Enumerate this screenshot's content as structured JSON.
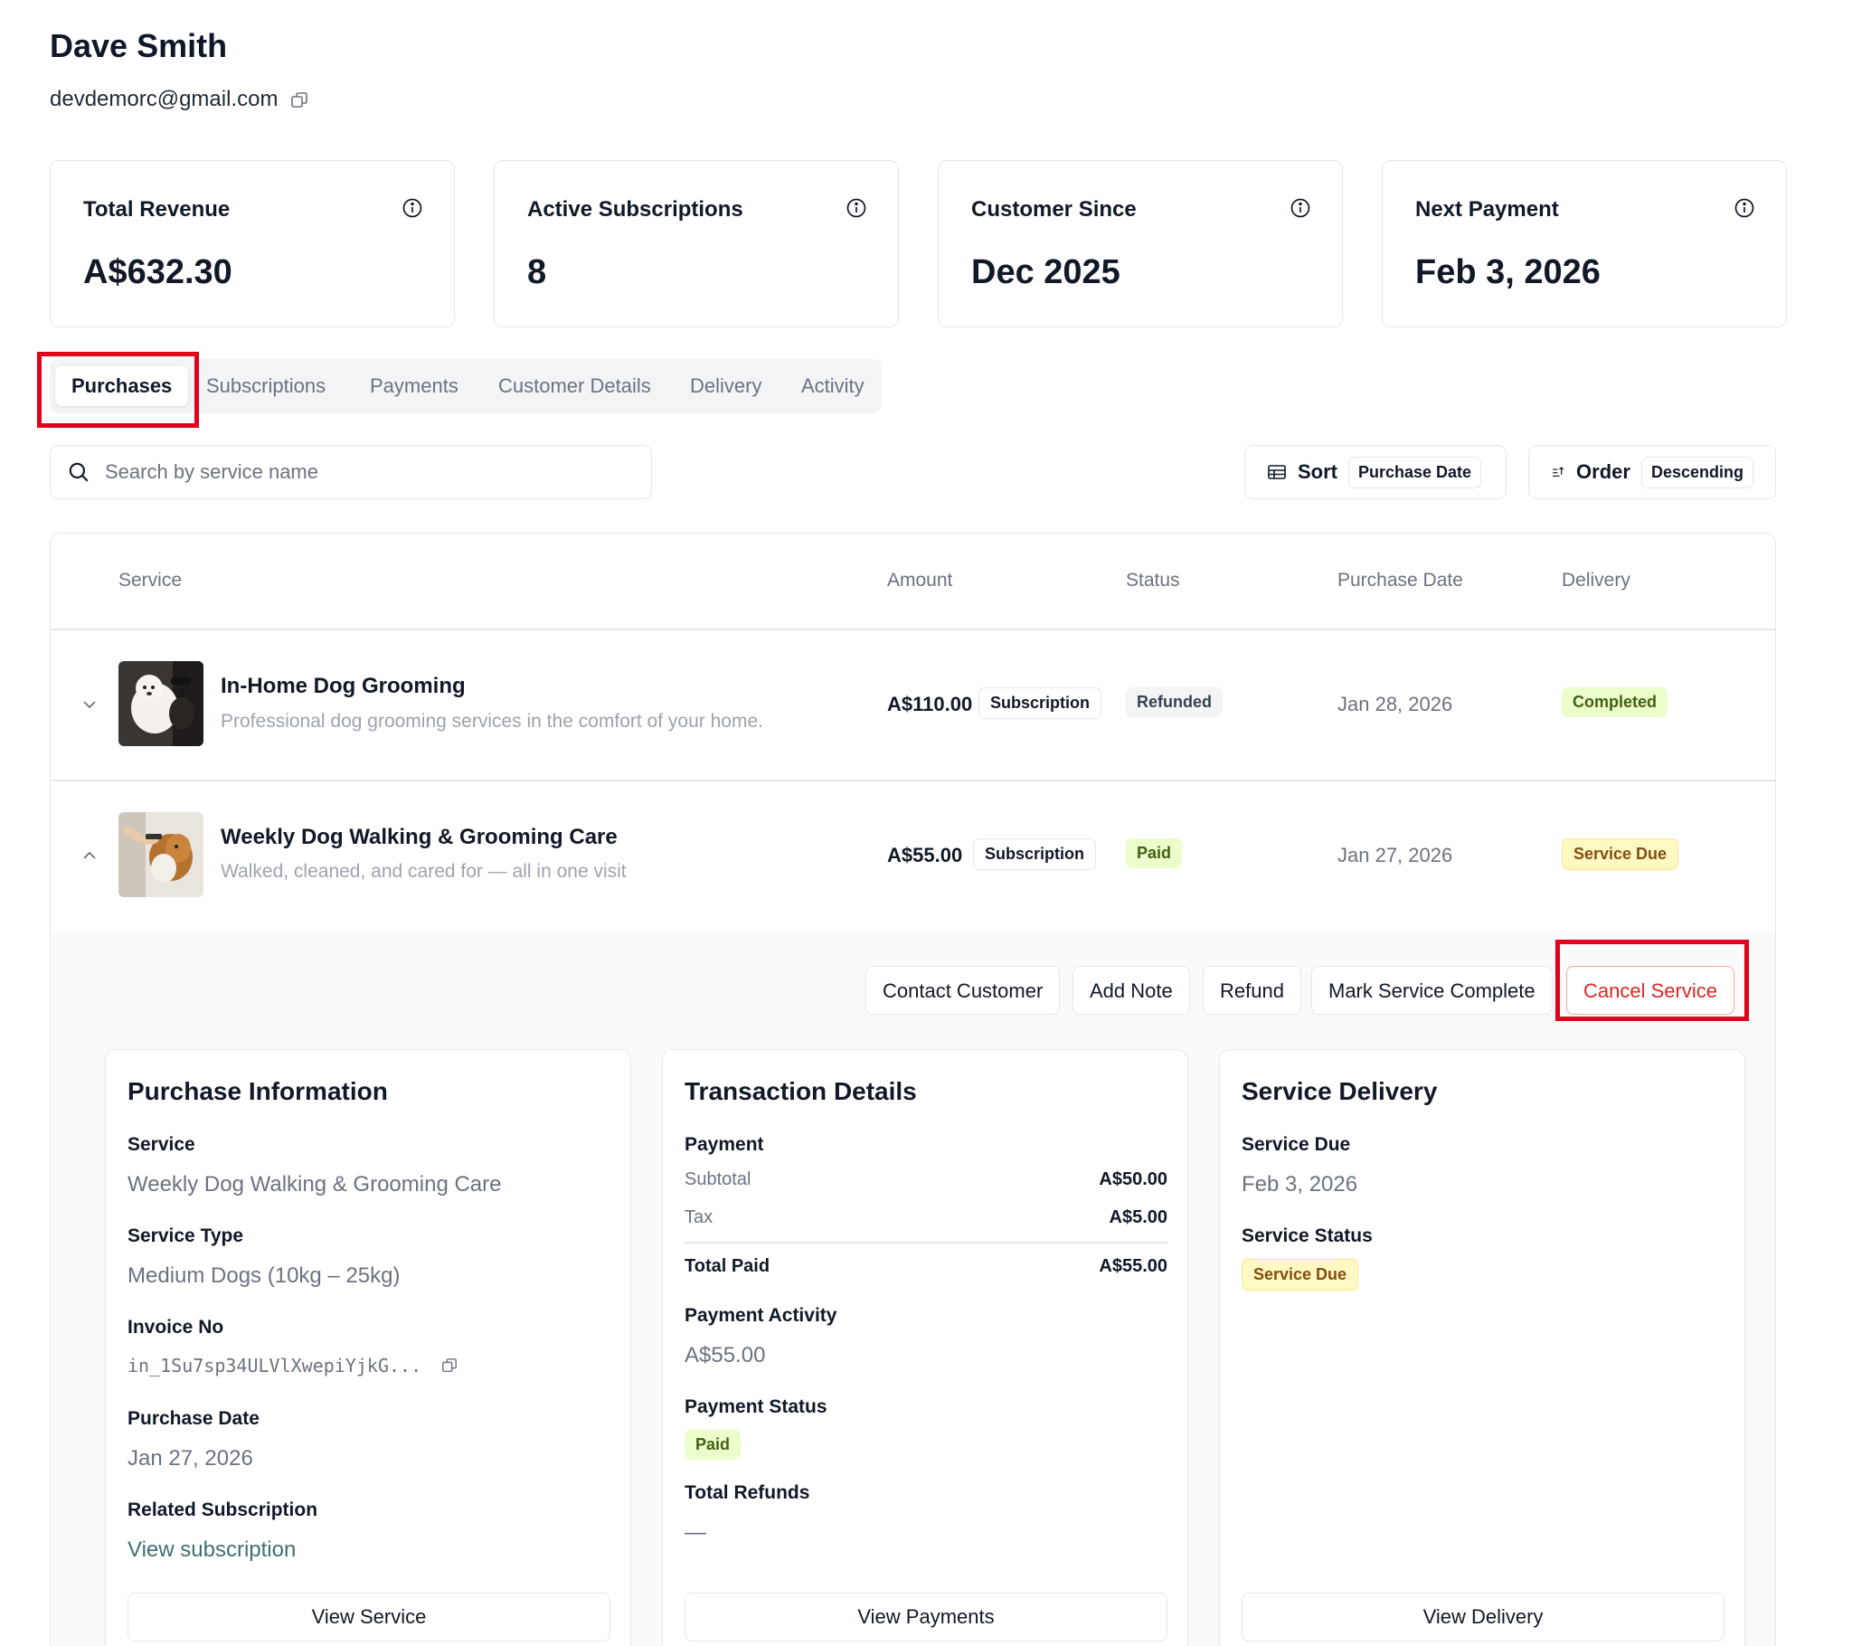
{
  "customer": {
    "name": "Dave Smith",
    "email": "devdemorc@gmail.com"
  },
  "stats": [
    {
      "label": "Total Revenue",
      "value": "A$632.30"
    },
    {
      "label": "Active Subscriptions",
      "value": "8"
    },
    {
      "label": "Customer Since",
      "value": "Dec 2025"
    },
    {
      "label": "Next Payment",
      "value": "Feb 3, 2026"
    }
  ],
  "tabs": [
    "Purchases",
    "Subscriptions",
    "Payments",
    "Customer Details",
    "Delivery",
    "Activity"
  ],
  "active_tab": "Purchases",
  "search": {
    "placeholder": "Search by service name",
    "value": ""
  },
  "sort": {
    "label": "Sort",
    "value": "Purchase Date"
  },
  "order": {
    "label": "Order",
    "value": "Descending"
  },
  "table": {
    "columns": [
      "Service",
      "Amount",
      "Status",
      "Purchase Date",
      "Delivery"
    ],
    "rows": [
      {
        "title": "In-Home Dog Grooming",
        "subtitle": "Professional dog grooming services in the comfort of your home.",
        "amount": "A$110.00",
        "type": "Subscription",
        "status": "Refunded",
        "purchase_date": "Jan 28, 2026",
        "delivery": "Completed",
        "expanded": false
      },
      {
        "title": "Weekly Dog Walking & Grooming Care",
        "subtitle": "Walked, cleaned, and cared for — all in one visit",
        "amount": "A$55.00",
        "type": "Subscription",
        "status": "Paid",
        "purchase_date": "Jan 27, 2026",
        "delivery": "Service Due",
        "expanded": true
      }
    ]
  },
  "actions": [
    "Contact Customer",
    "Add Note",
    "Refund",
    "Mark Service Complete",
    "Cancel Service"
  ],
  "purchase_info": {
    "title": "Purchase Information",
    "service_label": "Service",
    "service_value": "Weekly Dog Walking & Grooming Care",
    "type_label": "Service Type",
    "type_value": "Medium Dogs (10kg – 25kg)",
    "invoice_label": "Invoice No",
    "invoice_value": "in_1Su7sp34ULVlXwepiYjkG...",
    "date_label": "Purchase Date",
    "date_value": "Jan 27, 2026",
    "related_label": "Related Subscription",
    "related_link": "View subscription",
    "button": "View Service"
  },
  "transaction": {
    "title": "Transaction Details",
    "payment_label": "Payment",
    "subtotal_label": "Subtotal",
    "subtotal_value": "A$50.00",
    "tax_label": "Tax",
    "tax_value": "A$5.00",
    "total_label": "Total Paid",
    "total_value": "A$55.00",
    "activity_label": "Payment Activity",
    "activity_value": "A$55.00",
    "status_label": "Payment Status",
    "status_value": "Paid",
    "refunds_label": "Total Refunds",
    "refunds_value": "—",
    "button": "View Payments"
  },
  "delivery": {
    "title": "Service Delivery",
    "due_label": "Service Due",
    "due_value": "Feb 3, 2026",
    "status_label": "Service Status",
    "status_value": "Service Due",
    "button": "View Delivery"
  },
  "colors": {
    "highlight": "#e3001b",
    "danger": "#dc2626",
    "link": "#3f6f73",
    "green_badge": "#ecfccb",
    "yellow_badge": "#fef9c3"
  }
}
